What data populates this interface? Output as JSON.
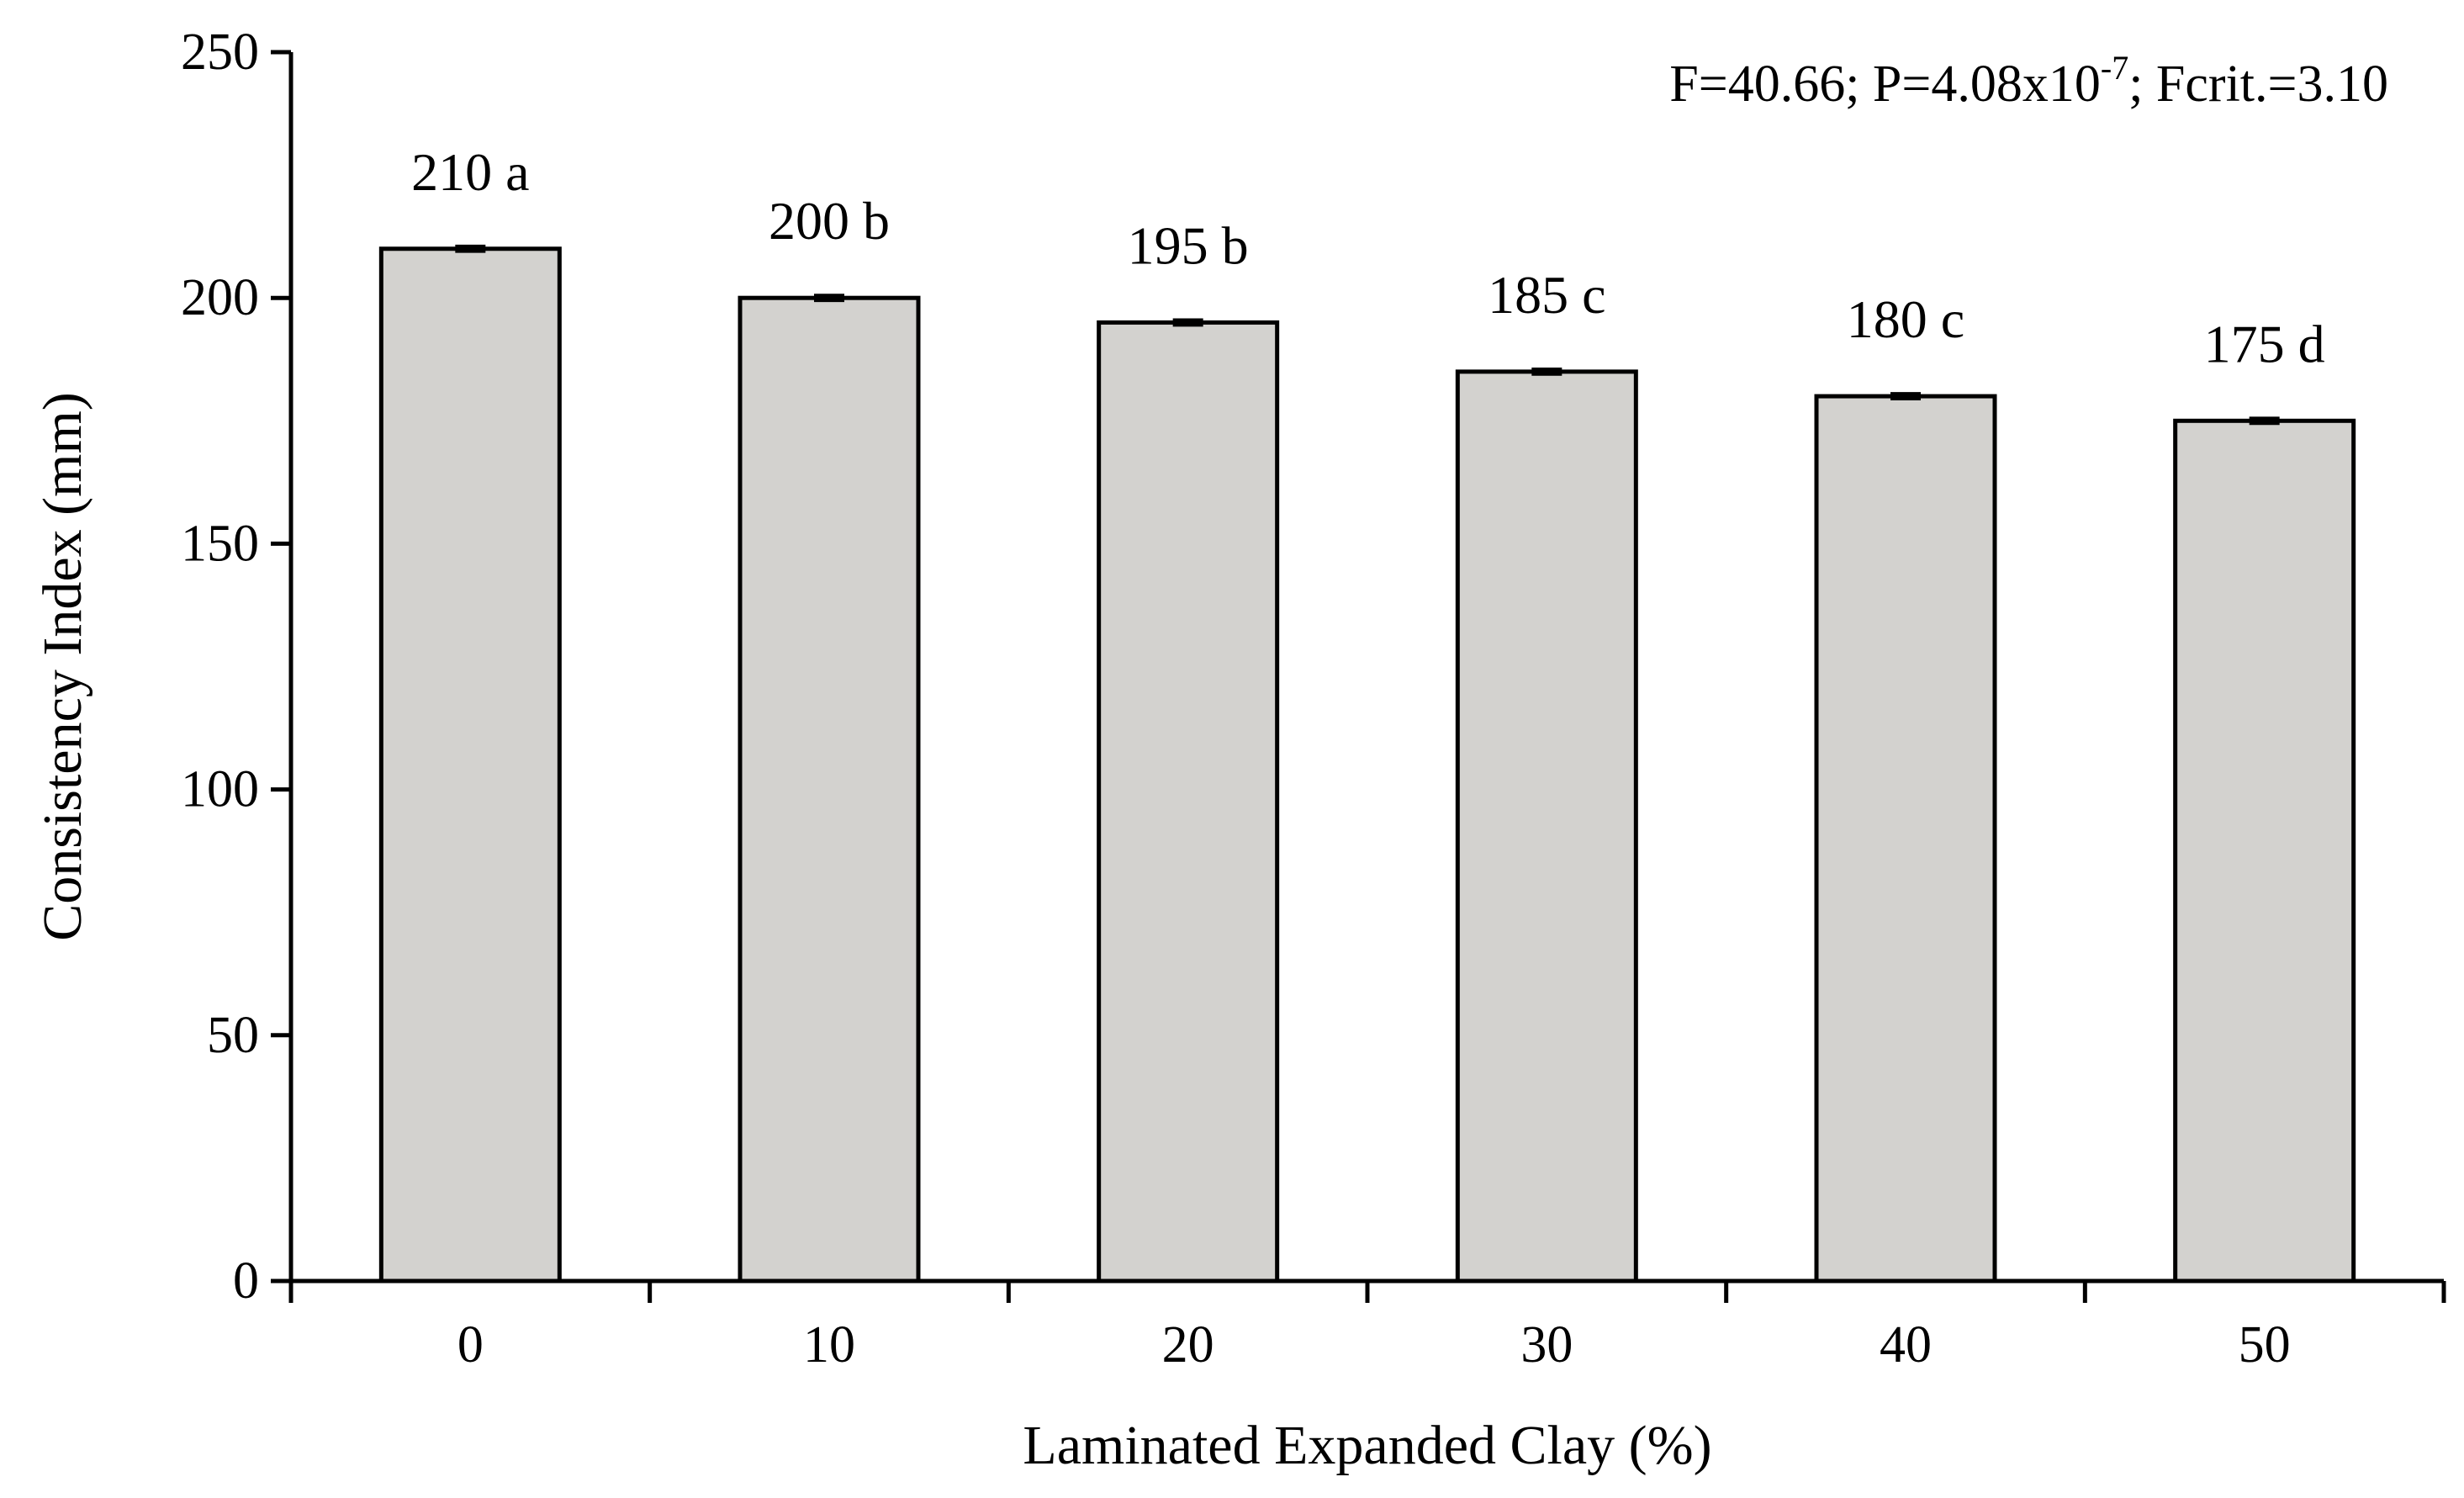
{
  "chart_data": {
    "type": "bar",
    "categories": [
      "0",
      "10",
      "20",
      "30",
      "40",
      "50"
    ],
    "values": [
      210,
      200,
      195,
      185,
      180,
      175
    ],
    "errors": [
      0.5,
      0.5,
      0.5,
      0.5,
      0.5,
      0.5
    ],
    "data_labels": [
      "210 a",
      "200 b",
      "195 b",
      "185 c",
      "180 c",
      "175 d"
    ],
    "title": "",
    "xlabel": "Laminated Expanded Clay (%)",
    "ylabel": "Consistency Index (mm)",
    "ylim": [
      0,
      250
    ],
    "yticks": [
      0,
      50,
      100,
      150,
      200,
      250
    ],
    "grid": false,
    "bar_color": "#d3d2cf",
    "annotation": {
      "prefix": "F=40.66; P=4.08x10",
      "exponent": "-7",
      "suffix": "; Fcrit.=3.10"
    }
  }
}
